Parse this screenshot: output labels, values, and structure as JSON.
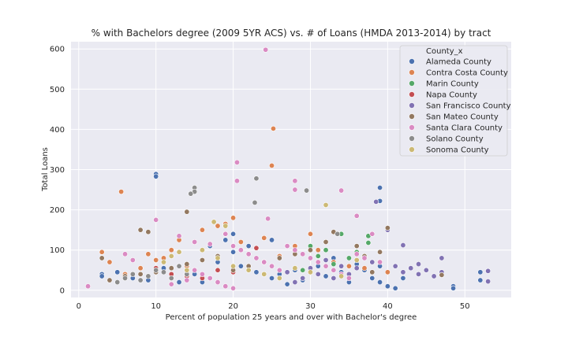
{
  "chart_data": {
    "type": "scatter",
    "title": "% with Bachelors degree (2009 5YR ACS) vs. # of Loans (HMDA 2013-2014) by tract",
    "xlabel": "Percent of population 25 years and over with Bachelor's degree",
    "ylabel": "Total Loans",
    "xlim": [
      -1,
      56
    ],
    "ylim": [
      -18,
      618
    ],
    "xticks": [
      0,
      10,
      20,
      30,
      40,
      50
    ],
    "yticks": [
      0,
      100,
      200,
      300,
      400,
      500,
      600
    ],
    "grid": true,
    "legend_title": "County_x",
    "legend_position": "top-right",
    "background": "#eaeaf2",
    "series": [
      {
        "name": "Alameda County",
        "color": "#4c72b0",
        "points": [
          [
            10,
            289
          ],
          [
            10,
            283
          ],
          [
            39,
            255
          ],
          [
            39,
            222
          ],
          [
            3,
            40
          ],
          [
            3,
            35
          ],
          [
            5,
            45
          ],
          [
            7,
            30
          ],
          [
            9,
            25
          ],
          [
            11,
            55
          ],
          [
            13,
            20
          ],
          [
            15,
            40
          ],
          [
            16,
            20
          ],
          [
            17,
            110
          ],
          [
            18,
            70
          ],
          [
            19,
            125
          ],
          [
            20,
            95
          ],
          [
            21,
            60
          ],
          [
            23,
            45
          ],
          [
            24,
            70
          ],
          [
            25,
            125
          ],
          [
            25,
            30
          ],
          [
            26,
            40
          ],
          [
            27,
            15
          ],
          [
            28,
            50
          ],
          [
            29,
            25
          ],
          [
            30,
            100
          ],
          [
            31,
            60
          ],
          [
            32,
            35
          ],
          [
            33,
            80
          ],
          [
            34,
            45
          ],
          [
            35,
            20
          ],
          [
            36,
            65
          ],
          [
            37,
            50
          ],
          [
            38,
            30
          ],
          [
            39,
            60
          ],
          [
            39,
            20
          ],
          [
            40,
            10
          ],
          [
            41,
            5
          ],
          [
            42,
            30
          ],
          [
            48.5,
            10
          ],
          [
            48.5,
            5
          ],
          [
            52,
            45
          ],
          [
            52,
            25
          ],
          [
            20,
            140
          ],
          [
            22,
            110
          ]
        ]
      },
      {
        "name": "Contra Costa County",
        "color": "#dd8452",
        "points": [
          [
            5.5,
            245
          ],
          [
            25.2,
            402
          ],
          [
            25,
            310
          ],
          [
            9,
            90
          ],
          [
            10,
            75
          ],
          [
            11,
            80
          ],
          [
            12,
            100
          ],
          [
            13,
            125
          ],
          [
            14,
            60
          ],
          [
            16,
            150
          ],
          [
            18,
            160
          ],
          [
            19,
            165
          ],
          [
            20,
            180
          ],
          [
            21,
            120
          ],
          [
            22,
            90
          ],
          [
            24,
            130
          ],
          [
            26,
            85
          ],
          [
            28,
            110
          ],
          [
            30,
            140
          ],
          [
            31,
            100
          ],
          [
            33,
            70
          ],
          [
            35,
            60
          ],
          [
            37,
            55
          ],
          [
            40,
            45
          ],
          [
            3,
            95
          ],
          [
            4,
            70
          ],
          [
            6,
            40
          ],
          [
            8,
            55
          ]
        ]
      },
      {
        "name": "Marin County",
        "color": "#55a868",
        "points": [
          [
            37.5,
            135
          ],
          [
            37.5,
            118
          ],
          [
            30,
            110
          ],
          [
            32,
            100
          ],
          [
            34,
            140
          ],
          [
            35,
            80
          ],
          [
            36,
            95
          ],
          [
            33,
            65
          ],
          [
            31,
            85
          ],
          [
            29,
            50
          ]
        ]
      },
      {
        "name": "Napa County",
        "color": "#c44e52",
        "points": [
          [
            23,
            105
          ],
          [
            10,
            55
          ],
          [
            12,
            40
          ],
          [
            14,
            35
          ],
          [
            16,
            30
          ],
          [
            18,
            50
          ],
          [
            20,
            45
          ]
        ]
      },
      {
        "name": "San Francisco County",
        "color": "#8172b3",
        "points": [
          [
            38.5,
            220
          ],
          [
            42,
            112
          ],
          [
            40,
            150
          ],
          [
            41,
            60
          ],
          [
            42,
            45
          ],
          [
            43,
            55
          ],
          [
            44,
            65
          ],
          [
            44,
            40
          ],
          [
            45,
            50
          ],
          [
            46,
            35
          ],
          [
            47,
            80
          ],
          [
            47,
            45
          ],
          [
            53,
            48
          ],
          [
            53,
            22
          ],
          [
            38,
            70
          ],
          [
            36,
            55
          ],
          [
            35,
            40
          ],
          [
            34,
            60
          ],
          [
            33,
            30
          ],
          [
            32,
            75
          ],
          [
            31,
            40
          ],
          [
            30,
            55
          ],
          [
            29,
            30
          ],
          [
            28,
            20
          ],
          [
            27,
            45
          ]
        ]
      },
      {
        "name": "San Mateo County",
        "color": "#937860",
        "points": [
          [
            8,
            150
          ],
          [
            9,
            145
          ],
          [
            14,
            195
          ],
          [
            40,
            155
          ],
          [
            39,
            95
          ],
          [
            36,
            110
          ],
          [
            37,
            85
          ],
          [
            38,
            45
          ],
          [
            33,
            145
          ],
          [
            32,
            120
          ],
          [
            30,
            100
          ],
          [
            28,
            90
          ],
          [
            26,
            80
          ],
          [
            24,
            70
          ],
          [
            22,
            60
          ],
          [
            20,
            50
          ],
          [
            18,
            85
          ],
          [
            16,
            75
          ],
          [
            14,
            65
          ],
          [
            12,
            55
          ],
          [
            10,
            45
          ],
          [
            8,
            40
          ],
          [
            6,
            35
          ],
          [
            4,
            25
          ],
          [
            47,
            38
          ],
          [
            3,
            80
          ]
        ]
      },
      {
        "name": "Santa Clara County",
        "color": "#da8bc3",
        "points": [
          [
            24.2,
            598
          ],
          [
            20.5,
            318
          ],
          [
            20.5,
            272
          ],
          [
            28,
            272
          ],
          [
            28,
            250
          ],
          [
            34,
            248
          ],
          [
            24.5,
            178
          ],
          [
            10,
            175
          ],
          [
            13,
            135
          ],
          [
            15,
            120
          ],
          [
            17,
            115
          ],
          [
            19,
            140
          ],
          [
            20,
            110
          ],
          [
            21,
            100
          ],
          [
            22,
            90
          ],
          [
            23,
            80
          ],
          [
            24,
            70
          ],
          [
            25,
            60
          ],
          [
            26,
            50
          ],
          [
            27,
            110
          ],
          [
            28,
            100
          ],
          [
            29,
            90
          ],
          [
            30,
            80
          ],
          [
            31,
            70
          ],
          [
            32,
            60
          ],
          [
            33,
            50
          ],
          [
            34,
            40
          ],
          [
            35,
            30
          ],
          [
            36,
            185
          ],
          [
            36,
            90
          ],
          [
            37,
            80
          ],
          [
            38,
            140
          ],
          [
            39,
            70
          ],
          [
            15,
            50
          ],
          [
            16,
            40
          ],
          [
            17,
            30
          ],
          [
            18,
            20
          ],
          [
            19,
            10
          ],
          [
            20,
            5
          ],
          [
            12,
            15
          ],
          [
            14,
            25
          ],
          [
            1.2,
            10
          ],
          [
            6,
            90
          ],
          [
            7,
            75
          ]
        ]
      },
      {
        "name": "Solano County",
        "color": "#8c8c8c",
        "points": [
          [
            15,
            255
          ],
          [
            15,
            245
          ],
          [
            14.5,
            240
          ],
          [
            23,
            278
          ],
          [
            22.8,
            218
          ],
          [
            29.5,
            248
          ],
          [
            33.5,
            140
          ],
          [
            5,
            20
          ],
          [
            6,
            30
          ],
          [
            7,
            40
          ],
          [
            8,
            25
          ],
          [
            9,
            35
          ],
          [
            10,
            50
          ],
          [
            11,
            45
          ],
          [
            12,
            30
          ],
          [
            13,
            60
          ],
          [
            14,
            40
          ]
        ]
      },
      {
        "name": "Sonoma County",
        "color": "#ccb974",
        "points": [
          [
            32,
            212
          ],
          [
            17.5,
            170
          ],
          [
            19,
            160
          ],
          [
            16,
            100
          ],
          [
            18,
            80
          ],
          [
            20,
            60
          ],
          [
            22,
            50
          ],
          [
            24,
            40
          ],
          [
            26,
            30
          ],
          [
            28,
            55
          ],
          [
            30,
            45
          ],
          [
            34,
            35
          ],
          [
            36,
            75
          ],
          [
            11,
            70
          ],
          [
            12,
            85
          ],
          [
            13,
            95
          ],
          [
            14,
            50
          ]
        ]
      }
    ]
  }
}
